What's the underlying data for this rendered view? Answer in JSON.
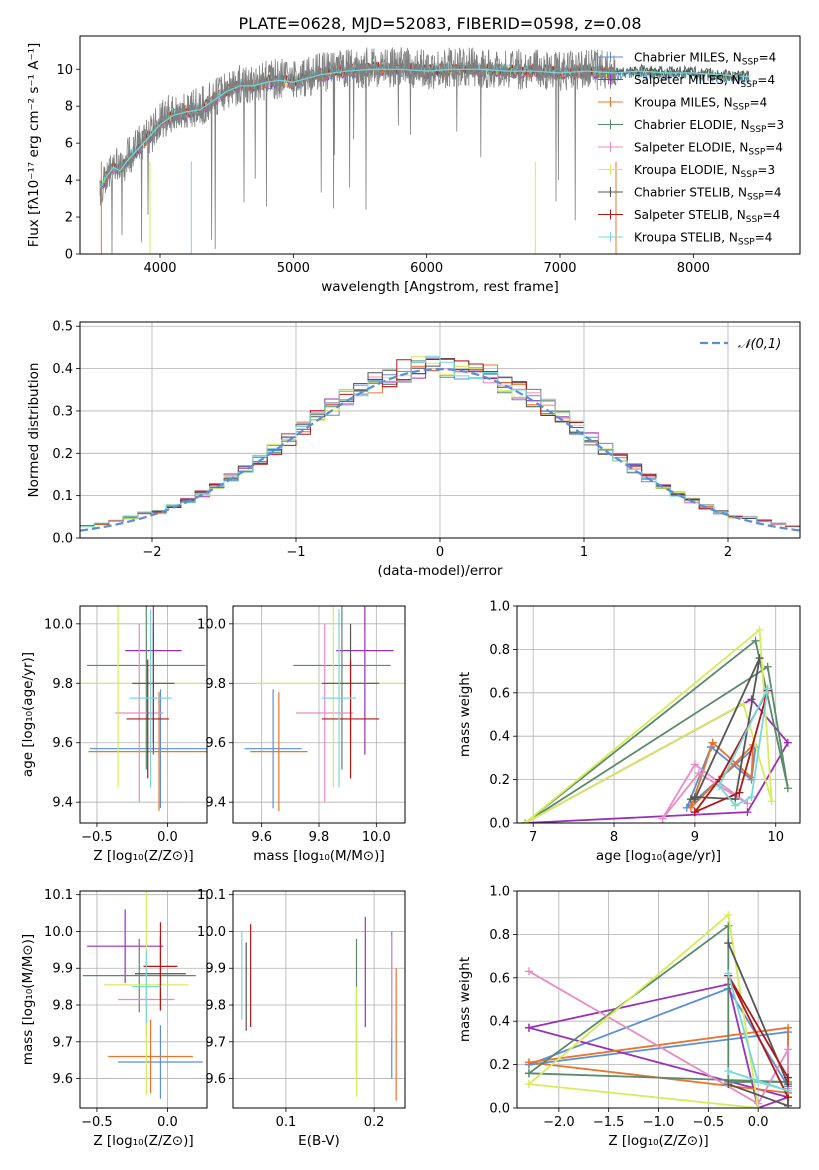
{
  "figure_title": "PLATE=0628, MJD=52083, FIBERID=0598, z=0.08",
  "models": [
    {
      "name": "Chabrier MILES, N_SSP=4",
      "label": "Chabrier MILES, N",
      "sub": "SSP",
      "tail": "=4",
      "color": "#5b8ed6"
    },
    {
      "name": "Salpeter MILES, N_SSP=4",
      "label": "Salpeter MILES, N",
      "sub": "SSP",
      "tail": "=4",
      "color": "#9a30b8"
    },
    {
      "name": "Kroupa MILES, N_SSP=4",
      "label": "Kroupa MILES, N",
      "sub": "SSP",
      "tail": "=4",
      "color": "#e8742e"
    },
    {
      "name": "Chabrier ELODIE, N_SSP=3",
      "label": "Chabrier ELODIE, N",
      "sub": "SSP",
      "tail": "=3",
      "color": "#5a8a6a"
    },
    {
      "name": "Salpeter ELODIE, N_SSP=4",
      "label": "Salpeter ELODIE, N",
      "sub": "SSP",
      "tail": "=4",
      "color": "#e88cc4"
    },
    {
      "name": "Kroupa ELODIE, N_SSP=3",
      "label": "Kroupa ELODIE, N",
      "sub": "SSP",
      "tail": "=3",
      "color": "#d6ec5a"
    },
    {
      "name": "Chabrier STELIB, N_SSP=4",
      "label": "Chabrier STELIB, N",
      "sub": "SSP",
      "tail": "=4",
      "color": "#555555"
    },
    {
      "name": "Salpeter STELIB, N_SSP=4",
      "label": "Salpeter STELIB, N",
      "sub": "SSP",
      "tail": "=4",
      "color": "#b01818"
    },
    {
      "name": "Kroupa STELIB, N_SSP=4",
      "label": "Kroupa STELIB, N",
      "sub": "SSP",
      "tail": "=4",
      "color": "#78d8d8"
    }
  ],
  "chart_data": [
    {
      "id": "spectrum",
      "type": "line",
      "xlabel": "wavelength [Angstrom, rest frame]",
      "ylabel": "Flux [fλ10⁻¹⁷ erg cm⁻² s⁻¹ A⁻¹]",
      "xlim": [
        3400,
        8800
      ],
      "ylim": [
        0,
        11.8
      ],
      "xticks": [
        4000,
        5000,
        6000,
        7000,
        8000
      ],
      "yticks": [
        0,
        2,
        4,
        6,
        8,
        10
      ],
      "grid": false,
      "legend": "right",
      "series": [
        {
          "name": "data",
          "color": "#808080",
          "x": [
            3550,
            3600,
            3650,
            3700,
            3750,
            3800,
            3850,
            3900,
            3950,
            4000,
            4100,
            4200,
            4300,
            4400,
            4500,
            4600,
            4700,
            4800,
            4900,
            5000,
            5200,
            5400,
            5600,
            5800,
            6000,
            6200,
            6400,
            6600,
            6800,
            7000,
            7200,
            7400
          ],
          "y": [
            3.5,
            4.3,
            4.9,
            4.6,
            5.2,
            5.6,
            6.0,
            6.3,
            6.6,
            7.2,
            7.7,
            7.8,
            7.9,
            8.4,
            8.9,
            9.2,
            9.2,
            9.4,
            9.5,
            9.4,
            9.8,
            10.0,
            10.1,
            10.1,
            10.0,
            10.1,
            10.1,
            10.0,
            10.0,
            9.9,
            10.0,
            9.9
          ]
        },
        {
          "name": "model",
          "color": "#78d8d8",
          "x": [
            3550,
            3600,
            3650,
            3700,
            3750,
            3800,
            3850,
            3900,
            3950,
            4000,
            4100,
            4200,
            4300,
            4400,
            4500,
            4600,
            4700,
            4800,
            4900,
            5000,
            5200,
            5400,
            5600,
            5800,
            6000,
            6200,
            6400,
            6600,
            6800,
            7000,
            7200,
            7400,
            7600,
            7800,
            8000,
            8200,
            8400
          ],
          "y": [
            3.6,
            4.2,
            4.7,
            4.5,
            5.0,
            5.4,
            5.8,
            6.2,
            6.6,
            7.0,
            7.5,
            7.7,
            7.8,
            8.3,
            8.8,
            9.1,
            9.1,
            9.3,
            9.4,
            9.3,
            9.7,
            9.9,
            10.0,
            10.0,
            9.9,
            10.0,
            10.0,
            9.9,
            9.9,
            9.8,
            9.9,
            9.8,
            9.9,
            9.8,
            9.8,
            9.7,
            9.6
          ]
        }
      ]
    },
    {
      "id": "residuals",
      "type": "histogram",
      "xlabel": "(data-model)/error",
      "ylabel": "Normed distribution",
      "xlim": [
        -2.5,
        2.5
      ],
      "ylim": [
        0,
        0.51
      ],
      "xticks": [
        -2,
        -1,
        0,
        1,
        2
      ],
      "yticks": [
        0.0,
        0.1,
        0.2,
        0.3,
        0.4,
        0.5
      ],
      "grid": true,
      "legend": "top-right",
      "reference_curve": {
        "name": "𝒩(0,1)",
        "mean": 0,
        "sigma": 1,
        "color": "#5b8ed6"
      },
      "bin_width": 0.1,
      "bins_start": -2.5
    },
    {
      "id": "age_vs_Z",
      "type": "errorbar",
      "xlabel": "Z [log₁₀(Z/Z⊙)]",
      "ylabel": "age  [log₁₀(age/yr)]",
      "xlim": [
        -0.62,
        0.28
      ],
      "ylim": [
        9.33,
        10.06
      ],
      "xticks": [
        -0.5,
        0.0
      ],
      "yticks": [
        9.4,
        9.6,
        9.8,
        10.0
      ],
      "grid": true,
      "points": [
        {
          "x": -0.05,
          "y": 9.58,
          "xerr": 0.5,
          "yerr": 0.2
        },
        {
          "x": -0.1,
          "y": 9.91,
          "xerr": 0.2,
          "yerr": 0.35
        },
        {
          "x": -0.06,
          "y": 9.57,
          "xerr": 0.5,
          "yerr": 0.2
        },
        {
          "x": -0.15,
          "y": 9.86,
          "xerr": 0.42,
          "yerr": 0.35
        },
        {
          "x": -0.2,
          "y": 9.7,
          "xerr": 0.17,
          "yerr": 0.3
        },
        {
          "x": -0.35,
          "y": 9.8,
          "xerr": 0.6,
          "yerr": 0.35
        },
        {
          "x": -0.1,
          "y": 9.8,
          "xerr": 0.15,
          "yerr": 0.2
        },
        {
          "x": -0.14,
          "y": 9.68,
          "xerr": 0.15,
          "yerr": 0.2
        },
        {
          "x": -0.12,
          "y": 9.75,
          "xerr": 0.15,
          "yerr": 0.3
        }
      ]
    },
    {
      "id": "age_vs_mass",
      "type": "errorbar",
      "xlabel": "mass [log₁₀(M/M⊙)]",
      "ylabel": "",
      "xlim": [
        9.5,
        10.1
      ],
      "ylim": [
        9.33,
        10.06
      ],
      "xticks": [
        9.6,
        9.8,
        10.0
      ],
      "yticks": [
        9.4,
        9.6,
        9.8,
        10.0
      ],
      "grid": true,
      "points": [
        {
          "x": 9.64,
          "y": 9.58,
          "xerr": 0.1,
          "yerr": 0.2
        },
        {
          "x": 9.96,
          "y": 9.91,
          "xerr": 0.1,
          "yerr": 0.35
        },
        {
          "x": 9.66,
          "y": 9.57,
          "xerr": 0.1,
          "yerr": 0.2
        },
        {
          "x": 9.88,
          "y": 9.86,
          "xerr": 0.17,
          "yerr": 0.35
        },
        {
          "x": 9.82,
          "y": 9.7,
          "xerr": 0.1,
          "yerr": 0.3
        },
        {
          "x": 9.85,
          "y": 9.8,
          "xerr": 0.27,
          "yerr": 0.35
        },
        {
          "x": 9.91,
          "y": 9.8,
          "xerr": 0.1,
          "yerr": 0.2
        },
        {
          "x": 9.91,
          "y": 9.68,
          "xerr": 0.1,
          "yerr": 0.2
        },
        {
          "x": 9.87,
          "y": 9.75,
          "xerr": 0.06,
          "yerr": 0.3
        }
      ]
    },
    {
      "id": "weight_vs_age",
      "type": "line",
      "xlabel": "age  [log₁₀(age/yr)]",
      "ylabel": "mass weight",
      "xlim": [
        6.8,
        10.3
      ],
      "ylim": [
        0,
        1
      ],
      "xticks": [
        7,
        8,
        9,
        10
      ],
      "yticks": [
        0.0,
        0.2,
        0.4,
        0.6,
        0.8,
        1.0
      ],
      "grid": true,
      "series": [
        {
          "x": [
            9.2,
            9.7,
            9.75,
            8.9,
            9.2
          ],
          "y": [
            0.35,
            0.2,
            0.35,
            0.07,
            0.35
          ]
        },
        {
          "x": [
            6.9,
            9.65,
            10.15,
            9.7,
            6.9
          ],
          "y": [
            0.0,
            0.05,
            0.37,
            0.57,
            0.0
          ]
        },
        {
          "x": [
            9.22,
            9.7,
            9.72,
            8.95,
            9.22
          ],
          "y": [
            0.37,
            0.21,
            0.36,
            0.07,
            0.37
          ]
        },
        {
          "x": [
            6.9,
            9.75,
            10.15,
            9.9,
            6.9
          ],
          "y": [
            0.0,
            0.84,
            0.16,
            0.72,
            0.0
          ]
        },
        {
          "x": [
            8.6,
            9.0,
            9.65,
            9.05,
            8.6
          ],
          "y": [
            0.02,
            0.27,
            0.09,
            0.23,
            0.02
          ]
        },
        {
          "x": [
            6.9,
            9.8,
            9.95,
            9.6,
            6.9
          ],
          "y": [
            0.0,
            0.89,
            0.1,
            0.55,
            0.0
          ]
        },
        {
          "x": [
            8.95,
            9.0,
            9.5,
            9.8,
            9.0
          ],
          "y": [
            0.11,
            0.12,
            0.11,
            0.76,
            0.11
          ]
        },
        {
          "x": [
            9.0,
            9.3,
            9.9,
            9.55,
            9.0
          ],
          "y": [
            0.05,
            0.2,
            0.61,
            0.14,
            0.05
          ]
        },
        {
          "x": [
            9.3,
            9.5,
            9.7,
            9.9,
            9.3
          ],
          "y": [
            0.17,
            0.08,
            0.12,
            0.62,
            0.17
          ]
        }
      ]
    },
    {
      "id": "mass_vs_Z",
      "type": "errorbar",
      "xlabel": "Z [log₁₀(Z/Z⊙)]",
      "ylabel": "mass [log₁₀(M/M⊙)]",
      "xlim": [
        -0.62,
        0.28
      ],
      "ylim": [
        9.52,
        10.11
      ],
      "xticks": [
        -0.5,
        0.0
      ],
      "yticks": [
        9.6,
        9.7,
        9.8,
        9.9,
        10.0,
        10.1
      ],
      "grid": true,
      "points": [
        {
          "x": -0.05,
          "y": 9.645,
          "xerr": 0.3,
          "yerr": 0.1
        },
        {
          "x": -0.3,
          "y": 9.96,
          "xerr": 0.27,
          "yerr": 0.1
        },
        {
          "x": -0.12,
          "y": 9.66,
          "xerr": 0.3,
          "yerr": 0.1
        },
        {
          "x": -0.2,
          "y": 9.88,
          "xerr": 0.4,
          "yerr": 0.1
        },
        {
          "x": -0.15,
          "y": 9.815,
          "xerr": 0.2,
          "yerr": 0.1
        },
        {
          "x": -0.15,
          "y": 9.855,
          "xerr": 0.3,
          "yerr": 0.3
        },
        {
          "x": -0.05,
          "y": 9.885,
          "xerr": 0.18,
          "yerr": 0.1
        },
        {
          "x": -0.05,
          "y": 9.905,
          "xerr": 0.12,
          "yerr": 0.12
        },
        {
          "x": -0.15,
          "y": 9.85,
          "xerr": 0.1,
          "yerr": 0.1
        }
      ]
    },
    {
      "id": "mass_vs_EBV",
      "type": "errorbar",
      "xlabel": "E(B-V)",
      "ylabel": "",
      "xlim": [
        0.04,
        0.235
      ],
      "ylim": [
        9.52,
        10.11
      ],
      "xticks": [
        0.1,
        0.2
      ],
      "yticks": [
        9.6,
        9.7,
        9.8,
        9.9,
        10.0,
        10.1
      ],
      "grid": true,
      "points": [
        {
          "x": 0.22,
          "y": 9.8,
          "xerr": 0,
          "yerr": 0.2
        },
        {
          "x": 0.19,
          "y": 9.89,
          "xerr": 0,
          "yerr": 0.15
        },
        {
          "x": 0.225,
          "y": 9.72,
          "xerr": 0,
          "yerr": 0.18
        },
        {
          "x": 0.18,
          "y": 9.8,
          "xerr": 0,
          "yerr": 0.18
        },
        {
          "x": 0.22,
          "y": 9.85,
          "xerr": 0,
          "yerr": 0.14
        },
        {
          "x": 0.18,
          "y": 9.7,
          "xerr": 0,
          "yerr": 0.15
        },
        {
          "x": 0.055,
          "y": 9.85,
          "xerr": 0,
          "yerr": 0.12
        },
        {
          "x": 0.06,
          "y": 9.88,
          "xerr": 0,
          "yerr": 0.14
        },
        {
          "x": 0.05,
          "y": 9.88,
          "xerr": 0,
          "yerr": 0.12
        }
      ]
    },
    {
      "id": "weight_vs_Z",
      "type": "line",
      "xlabel": "Z [log₁₀(Z/Z⊙)]",
      "ylabel": "mass weight",
      "xlim": [
        -2.42,
        0.42
      ],
      "ylim": [
        0,
        1
      ],
      "xticks": [
        -2.0,
        -1.5,
        -1.0,
        -0.5,
        0.0
      ],
      "yticks": [
        0.0,
        0.2,
        0.4,
        0.6,
        0.8,
        1.0
      ],
      "grid": true,
      "series": [
        {
          "x": [
            -2.3,
            0.3,
            0.3,
            -0.3,
            -2.3
          ],
          "y": [
            0.2,
            0.35,
            0.1,
            0.55,
            0.2
          ]
        },
        {
          "x": [
            -2.3,
            -0.3,
            0.0,
            0.3,
            -2.3
          ],
          "y": [
            0.37,
            0.57,
            0.0,
            0.05,
            0.37
          ]
        },
        {
          "x": [
            -2.3,
            0.3,
            0.3,
            -2.3
          ],
          "y": [
            0.21,
            0.37,
            0.07,
            0.21
          ]
        },
        {
          "x": [
            -2.3,
            -0.3,
            -0.3,
            0.3,
            -2.3
          ],
          "y": [
            0.16,
            0.84,
            0.12,
            0.12,
            0.16
          ]
        },
        {
          "x": [
            -2.3,
            0.0,
            0.3,
            0.3
          ],
          "y": [
            0.63,
            0.02,
            0.27,
            0.09
          ]
        },
        {
          "x": [
            -2.3,
            -0.3,
            0.0,
            -2.3
          ],
          "y": [
            0.11,
            0.89,
            0.0,
            0.11
          ]
        },
        {
          "x": [
            -0.3,
            0.3,
            0.3,
            -0.3
          ],
          "y": [
            0.76,
            0.11,
            0.01,
            0.11
          ]
        },
        {
          "x": [
            -0.3,
            0.3,
            0.3,
            -0.3
          ],
          "y": [
            0.61,
            0.14,
            0.05,
            0.61
          ]
        },
        {
          "x": [
            -0.3,
            0.0,
            0.3,
            -0.3
          ],
          "y": [
            0.62,
            0.12,
            0.08,
            0.17
          ]
        }
      ]
    }
  ]
}
